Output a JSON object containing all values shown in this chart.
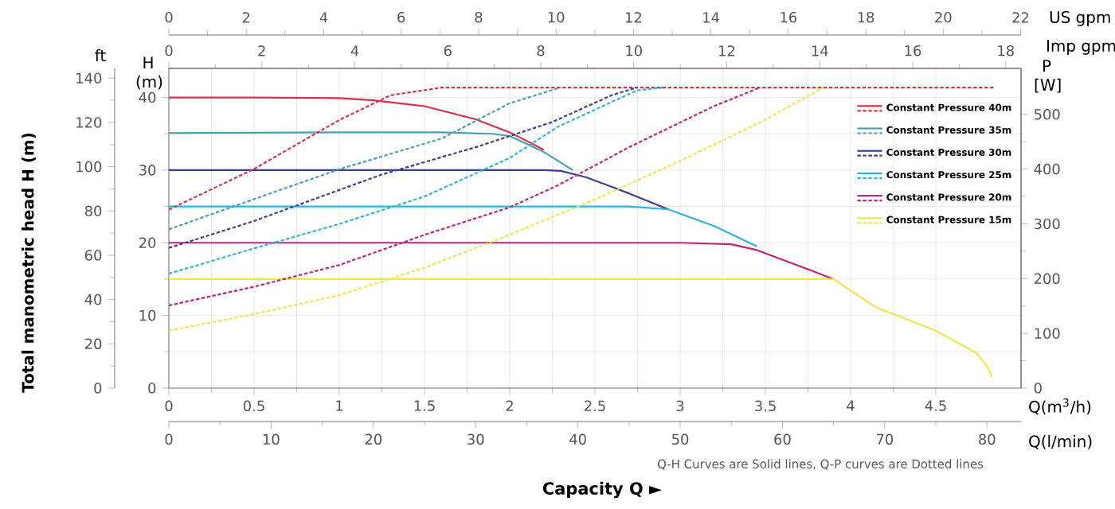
{
  "chart_data": [
    {
      "type": "line",
      "xlabel": "Q(m$^{3}$/h)",
      "x2label": "Imp gpm",
      "ylabel": "H (m)",
      "y2label": "ft",
      "annotations": [
        "Total manometric head H (m)",
        "Capacity Q ►",
        "Q-H Curves are Solid lines, Q-P curves are Dotted lines"
      ],
      "xlim": [
        0,
        5
      ],
      "xticks": [
        0,
        0.5,
        1,
        1.5,
        2,
        2.5,
        3,
        3.5,
        4,
        4.5
      ],
      "x2lim": [
        0,
        18.33
      ],
      "x2ticks": [
        0,
        2,
        4,
        6,
        8,
        10,
        12,
        14,
        16,
        18
      ],
      "ylim": [
        0,
        44
      ],
      "yticks": [
        0,
        10,
        20,
        30,
        40
      ],
      "y2lim": [
        0,
        144.4
      ],
      "y2ticks": [
        0,
        20,
        40,
        60,
        80,
        100,
        120,
        140
      ],
      "grid": true,
      "legend": "top right",
      "series": [
        {
          "name": "Constant Pressure 40m",
          "color": "#d9304a",
          "line_style": "solid",
          "x": [
            0,
            0.5,
            1.0,
            1.2,
            1.5,
            1.8,
            2.0,
            2.2
          ],
          "values": [
            40,
            40,
            39.9,
            39.6,
            38.8,
            37,
            35.2,
            32.8
          ]
        },
        {
          "name": "Constant Pressure 35m",
          "color": "#4a9fb5",
          "line_style": "solid",
          "x": [
            0,
            1.0,
            1.6,
            1.9,
            2.0,
            2.2,
            2.37
          ],
          "values": [
            35.1,
            35.2,
            35.2,
            35,
            34.7,
            32.5,
            30
          ]
        },
        {
          "name": "Constant Pressure 30m",
          "color": "#3b3f8f",
          "line_style": "solid",
          "x": [
            0,
            2.2,
            2.3,
            2.45,
            2.7,
            2.93
          ],
          "values": [
            30,
            30,
            29.9,
            29,
            26.8,
            24.6
          ]
        },
        {
          "name": "Constant Pressure 25m",
          "color": "#2fb3dc",
          "line_style": "solid",
          "x": [
            0,
            2.7,
            2.93,
            3.2,
            3.45
          ],
          "values": [
            25,
            25,
            24.6,
            22.3,
            19.5
          ]
        },
        {
          "name": "Constant Pressure 20m",
          "color": "#c0237e",
          "line_style": "solid",
          "x": [
            0,
            3.0,
            3.3,
            3.45,
            3.7,
            3.9
          ],
          "values": [
            20,
            20,
            19.8,
            19,
            16.8,
            15
          ]
        },
        {
          "name": "Constant Pressure 15m",
          "color": "#f0e64a",
          "line_style": "solid",
          "x": [
            0,
            3.9,
            4.15,
            4.5,
            4.74,
            4.8,
            4.83
          ],
          "values": [
            15,
            15,
            11.1,
            7.9,
            4.8,
            3.0,
            1.5
          ]
        }
      ]
    },
    {
      "type": "line",
      "xlabel": "Q(l/min)",
      "x2label": "US gpm",
      "ylabel": "P [W]",
      "xlim": [
        0,
        83.33
      ],
      "xticks": [
        0,
        10,
        20,
        30,
        40,
        50,
        60,
        70,
        80
      ],
      "x2lim": [
        0,
        22.01
      ],
      "x2ticks": [
        0,
        2,
        4,
        6,
        8,
        10,
        12,
        14,
        16,
        18,
        20,
        22
      ],
      "ylim": [
        0,
        584
      ],
      "yticks": [
        0,
        100,
        200,
        300,
        400,
        500
      ],
      "series": [
        {
          "color": "#d9304a",
          "line_style": "dotted",
          "x": [
            0,
            8.3,
            16.7,
            21.7,
            26.7,
            80.8
          ],
          "values": [
            326,
            400,
            490,
            535,
            549,
            549
          ]
        },
        {
          "color": "#4a9fb5",
          "line_style": "dotted",
          "x": [
            0,
            8.3,
            16.7,
            26.7,
            33.3,
            38.3
          ],
          "values": [
            290,
            345,
            400,
            456,
            520,
            549
          ]
        },
        {
          "color": "#3b3f8f",
          "line_style": "dotted",
          "x": [
            0,
            8.3,
            20.8,
            30,
            37.5,
            43.3,
            45.8
          ],
          "values": [
            256,
            305,
            390,
            440,
            486,
            535,
            549
          ]
        },
        {
          "color": "#2fb3dc",
          "line_style": "dotted",
          "x": [
            0,
            8.3,
            16.7,
            25,
            33.3,
            38,
            45.8,
            48.3
          ],
          "values": [
            209,
            255,
            300,
            350,
            420,
            477,
            544,
            549
          ]
        },
        {
          "color": "#c0237e",
          "line_style": "dotted",
          "x": [
            0,
            8.3,
            16.7,
            25,
            33.3,
            38,
            45,
            53.3,
            57.8
          ],
          "values": [
            151,
            185,
            225,
            280,
            330,
            370,
            440,
            515,
            549
          ]
        },
        {
          "color": "#f0e64a",
          "line_style": "dotted",
          "x": [
            0,
            8.3,
            16.7,
            25,
            33.3,
            41.7,
            50,
            58.3,
            64
          ],
          "values": [
            105,
            135,
            170,
            220,
            280,
            345,
            415,
            490,
            549
          ]
        }
      ]
    }
  ]
}
